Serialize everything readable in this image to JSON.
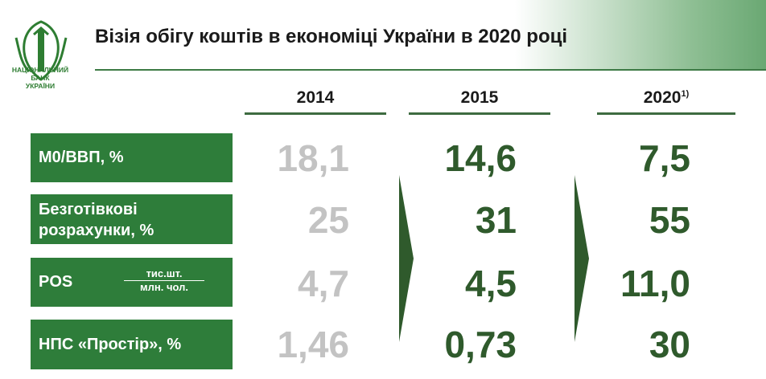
{
  "logo": {
    "line1": "НАЦІОНАЛЬНИЙ",
    "line2": "БАНК",
    "line3": "УКРАЇНИ"
  },
  "title": "Візія обігу коштів в економіці України в 2020 році",
  "columns": [
    {
      "label": "2014",
      "footnote": ""
    },
    {
      "label": "2015",
      "footnote": ""
    },
    {
      "label": "2020",
      "footnote": "1)"
    }
  ],
  "rows": [
    {
      "label": "М0/ВВП, %",
      "values": [
        "18,1",
        "14,6",
        "7,5"
      ]
    },
    {
      "label_line1": "Безготівкові",
      "label_line2": "розрахунки, %",
      "values": [
        "25",
        "31",
        "55"
      ]
    },
    {
      "label": "POS",
      "unit_top": "тис.шт.",
      "unit_bottom": "млн. чол.",
      "values": [
        "4,7",
        "4,5",
        "11,0"
      ]
    },
    {
      "label": "НПС «Простір», %",
      "values": [
        "1,46",
        "0,73",
        "30"
      ]
    }
  ],
  "colors": {
    "accent": "#2e7d3a",
    "value_current": "#2f5a2c",
    "value_past": "#c3c3c3"
  }
}
